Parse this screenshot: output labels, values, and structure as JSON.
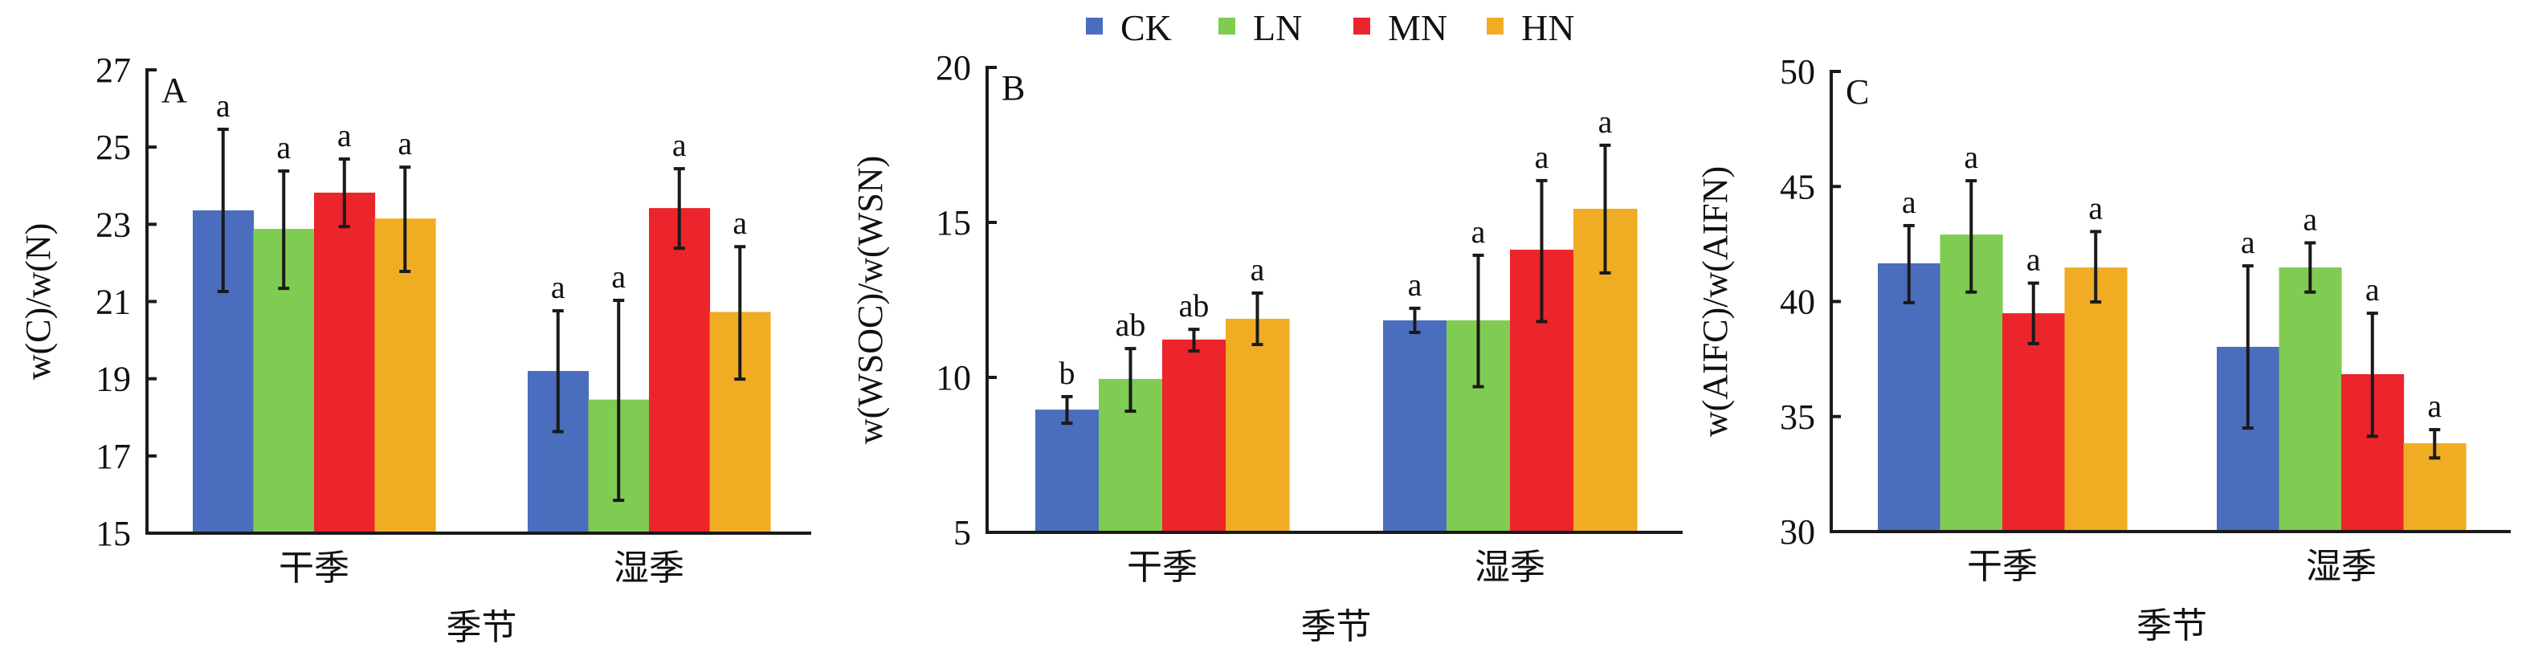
{
  "legend": {
    "items": [
      {
        "label": "CK",
        "color": "#4a6dbd"
      },
      {
        "label": "LN",
        "color": "#80cc52"
      },
      {
        "label": "MN",
        "color": "#ec242b"
      },
      {
        "label": "HN",
        "color": "#f0ad24"
      }
    ]
  },
  "chart_data": [
    {
      "type": "bar",
      "panel": "A",
      "title": "",
      "xlabel": "季节",
      "ylabel": "w(C)/w(N)",
      "ylim": [
        15,
        27
      ],
      "yticks": [
        "15",
        "17",
        "19",
        "21",
        "23",
        "25",
        "27"
      ],
      "yticks_values": [
        15,
        17,
        19,
        21,
        23,
        25,
        27
      ],
      "categories": [
        "干季",
        "湿季"
      ],
      "series": [
        {
          "name": "CK",
          "values": [
            23.36,
            19.2
          ],
          "err_low": [
            21.26,
            17.63
          ],
          "err_high": [
            25.46,
            20.76
          ],
          "sig": [
            "a",
            "a"
          ]
        },
        {
          "name": "LN",
          "values": [
            22.88,
            18.46
          ],
          "err_low": [
            21.34,
            15.85
          ],
          "err_high": [
            24.38,
            21.03
          ],
          "sig": [
            "a",
            "a"
          ]
        },
        {
          "name": "MN",
          "values": [
            23.82,
            23.42
          ],
          "err_low": [
            22.94,
            22.38
          ],
          "err_high": [
            24.69,
            24.44
          ],
          "sig": [
            "a",
            "a"
          ]
        },
        {
          "name": "HN",
          "values": [
            23.15,
            20.73
          ],
          "err_low": [
            21.78,
            18.99
          ],
          "err_high": [
            24.48,
            22.42
          ],
          "sig": [
            "a",
            "a"
          ]
        }
      ]
    },
    {
      "type": "bar",
      "panel": "B",
      "title": "",
      "xlabel": "季节",
      "ylabel": "w(WSOC)/w(WSN)",
      "ylim": [
        5,
        20
      ],
      "yticks": [
        "5",
        "10",
        "15",
        "20"
      ],
      "yticks_values": [
        5,
        10,
        15,
        20
      ],
      "categories": [
        "干季",
        "湿季"
      ],
      "series": [
        {
          "name": "CK",
          "values": [
            8.96,
            11.84
          ],
          "err_low": [
            8.52,
            11.45
          ],
          "err_high": [
            9.38,
            12.23
          ],
          "sig": [
            "b",
            "a"
          ]
        },
        {
          "name": "LN",
          "values": [
            9.95,
            11.84
          ],
          "err_low": [
            8.91,
            9.7
          ],
          "err_high": [
            10.93,
            13.94
          ],
          "sig": [
            "ab",
            "a"
          ]
        },
        {
          "name": "MN",
          "values": [
            11.22,
            14.12
          ],
          "err_low": [
            10.85,
            11.8
          ],
          "err_high": [
            11.55,
            16.35
          ],
          "sig": [
            "ab",
            "a"
          ]
        },
        {
          "name": "HN",
          "values": [
            11.89,
            15.44
          ],
          "err_low": [
            11.06,
            13.37
          ],
          "err_high": [
            12.72,
            17.49
          ],
          "sig": [
            "a",
            "a"
          ]
        }
      ]
    },
    {
      "type": "bar",
      "panel": "C",
      "title": "",
      "xlabel": "季节",
      "ylabel": "w(AIFC)/w(AIFN)",
      "ylim": [
        30,
        50
      ],
      "yticks": [
        "30",
        "35",
        "40",
        "45",
        "50"
      ],
      "yticks_values": [
        30,
        35,
        40,
        45,
        50
      ],
      "categories": [
        "干季",
        "湿季"
      ],
      "series": [
        {
          "name": "CK",
          "values": [
            41.66,
            38.03
          ],
          "err_low": [
            39.95,
            34.5
          ],
          "err_high": [
            43.3,
            41.55
          ],
          "sig": [
            "a",
            "a"
          ]
        },
        {
          "name": "LN",
          "values": [
            42.91,
            41.48
          ],
          "err_low": [
            40.41,
            40.41
          ],
          "err_high": [
            45.25,
            42.55
          ],
          "sig": [
            "a",
            "a"
          ]
        },
        {
          "name": "MN",
          "values": [
            39.49,
            36.84
          ],
          "err_low": [
            38.17,
            34.14
          ],
          "err_high": [
            40.8,
            39.49
          ],
          "sig": [
            "a",
            "a"
          ]
        },
        {
          "name": "HN",
          "values": [
            41.48,
            33.84
          ],
          "err_low": [
            39.98,
            33.2
          ],
          "err_high": [
            43.04,
            34.43
          ],
          "sig": [
            "a",
            "a"
          ]
        }
      ]
    }
  ]
}
